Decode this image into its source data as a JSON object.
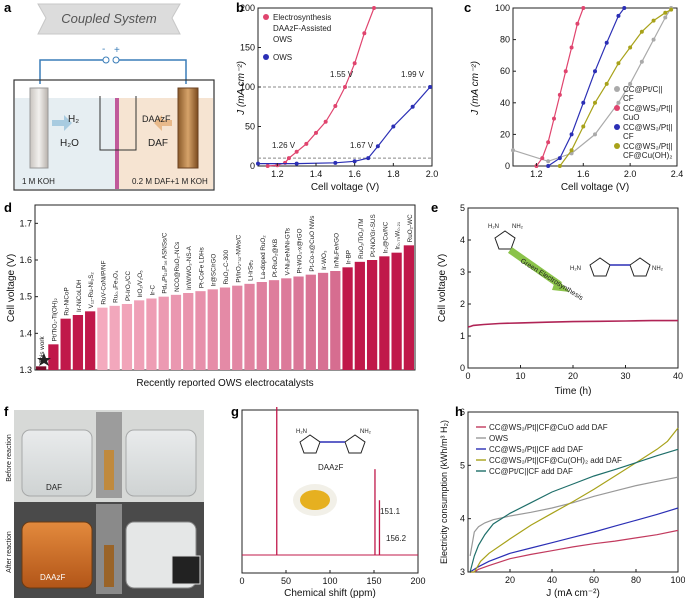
{
  "panels": {
    "a": {
      "label": "a",
      "title": "Coupled System",
      "minus": "-",
      "plus": "+",
      "h2": "H₂",
      "h2o": "H₂O",
      "daazf": "DAAzF",
      "daf": "DAF",
      "left_electrolyte": "1 M KOH",
      "right_electrolyte": "0.2 M DAF+1 M KOH"
    },
    "b": {
      "label": "b"
    },
    "c": {
      "label": "c"
    },
    "d": {
      "label": "d"
    },
    "e": {
      "label": "e",
      "scheme_arrow": "Green Electrosynthesis"
    },
    "f": {
      "label": "f",
      "before": "Before reaction",
      "after": "After reaction",
      "daf_tag": "DAF",
      "daazf_tag": "DAAzF"
    },
    "g": {
      "label": "g",
      "molecule": "DAAzF"
    },
    "h": {
      "label": "h"
    }
  },
  "chart_data": [
    {
      "id": "b",
      "type": "line",
      "xlabel": "Cell voltage (V)",
      "ylabel": "J (mA cm⁻²)",
      "xlim": [
        1.1,
        2.0
      ],
      "ylim": [
        0,
        200
      ],
      "xticks": [
        "1.2",
        "1.4",
        "1.6",
        "1.8",
        "2.0"
      ],
      "yticks": [
        "0",
        "50",
        "100",
        "150",
        "200"
      ],
      "hlines": [
        100,
        10
      ],
      "series": [
        {
          "name": "Electrosynthesis",
          "color": "#e0446e",
          "x": [
            1.15,
            1.2,
            1.24,
            1.26,
            1.3,
            1.35,
            1.4,
            1.45,
            1.5,
            1.55,
            1.6,
            1.65,
            1.7
          ],
          "y": [
            0,
            1,
            4,
            10,
            18,
            28,
            42,
            56,
            76,
            100,
            130,
            168,
            200
          ]
        },
        {
          "name": "OWS",
          "color": "#2b2fb5",
          "x": [
            1.1,
            1.3,
            1.5,
            1.6,
            1.67,
            1.72,
            1.8,
            1.9,
            1.99
          ],
          "y": [
            3,
            3,
            4,
            6,
            10,
            25,
            50,
            75,
            100
          ]
        }
      ],
      "legend": [
        "Electrosynthesis",
        "DAAzF-Assisted",
        "OWS",
        "OWS"
      ],
      "annotations": [
        "1.55 V",
        "1.99 V",
        "1.26 V",
        "1.67 V"
      ]
    },
    {
      "id": "c",
      "type": "line",
      "xlabel": "Cell voltage (V)",
      "ylabel": "J (mA cm⁻²)",
      "xlim": [
        1.0,
        2.4
      ],
      "ylim": [
        0,
        100
      ],
      "xticks": [
        "1.2",
        "1.6",
        "2.0",
        "2.4"
      ],
      "yticks": [
        "0",
        "20",
        "40",
        "60",
        "80",
        "100"
      ],
      "series": [
        {
          "name": "CC@Pt/C||CF",
          "color": "#aaaaaa",
          "x": [
            1.0,
            1.3,
            1.5,
            1.7,
            1.9,
            2.0,
            2.1,
            2.2,
            2.3,
            2.35
          ],
          "y": [
            10,
            3,
            8,
            20,
            40,
            52,
            66,
            80,
            94,
            100
          ]
        },
        {
          "name": "CC@WS₂/Pt||CuO",
          "color": "#e0446e",
          "x": [
            1.2,
            1.25,
            1.3,
            1.35,
            1.4,
            1.45,
            1.5,
            1.55,
            1.6
          ],
          "y": [
            0,
            5,
            15,
            30,
            45,
            60,
            75,
            90,
            100
          ]
        },
        {
          "name": "CC@WS₂/Pt||CF",
          "color": "#2b2fb5",
          "x": [
            1.3,
            1.4,
            1.5,
            1.6,
            1.7,
            1.8,
            1.9,
            1.95
          ],
          "y": [
            0,
            5,
            20,
            40,
            60,
            78,
            95,
            100
          ]
        },
        {
          "name": "CC@WS₂/Pt||CF@Cu(OH)₂",
          "color": "#a8a21a",
          "x": [
            1.4,
            1.5,
            1.6,
            1.7,
            1.8,
            1.9,
            2.0,
            2.1,
            2.2,
            2.3,
            2.35
          ],
          "y": [
            0,
            10,
            25,
            40,
            52,
            65,
            75,
            85,
            92,
            97,
            99
          ]
        }
      ],
      "legend": [
        "CC@Pt/C||",
        "CF",
        "CC@WS₂/Pt||",
        "CuO",
        "CC@WS₂/Pt||",
        "CF",
        "CC@WS₂/Pt||",
        "CF@Cu(OH)₂"
      ]
    },
    {
      "id": "d",
      "type": "bar",
      "xlabel": "Recently reported OWS electrocatalysts",
      "ylabel": "Cell voltage (V)",
      "ylim": [
        1.3,
        1.75
      ],
      "yticks": [
        "1.3",
        "1.4",
        "1.5",
        "1.6",
        "1.7"
      ],
      "categories": [
        "This work",
        "Pt/TiO₂-Ti(OH)₂",
        "Ru-NiCoP",
        "Ir-NiCoLDH",
        "V₁₂-Ru-Ni₃S₂",
        "RuV-CoNi/P/NF",
        "Ru₀.₃Fe₃O₄",
        "Pt-IrO₂/CC",
        "IrO₂/V₂O₅",
        "Ir-C",
        "Pd₄₄Pt₂₀P₃₆ ASNSs/C",
        "NCO@RuO₂-NCs",
        "Ir/W/WO₃-NS-A",
        "Pt-CoFe LDHs",
        "Ir@SC/rGO",
        "RuO₂-C-300",
        "Pt/IrO₂-₃₂-NWs/C",
        "Li-IrSe₂",
        "La-doped RuO₂",
        "Pt-RuO₂@KB",
        "V-Ni₃FeN/Ni-GTs",
        "Pt-WO₃-x@rGO",
        "Pt-Co-x@CuO NWs",
        "Ir-WO₃",
        "Ir/Ni₂Fe/rGO",
        "Ir-BP",
        "RuO₂/TiO₂/TM",
        "Pt-NiO/Gr-SUS",
        "Ir₂@Co/NC",
        "Ir₀.₇₉W₀.₂₁",
        "RuO₂-WC"
      ],
      "values": [
        1.31,
        1.37,
        1.44,
        1.45,
        1.46,
        1.47,
        1.475,
        1.48,
        1.49,
        1.495,
        1.5,
        1.505,
        1.51,
        1.515,
        1.52,
        1.525,
        1.53,
        1.535,
        1.54,
        1.545,
        1.55,
        1.555,
        1.56,
        1.565,
        1.57,
        1.58,
        1.595,
        1.6,
        1.61,
        1.62,
        1.64
      ]
    },
    {
      "id": "e",
      "type": "line",
      "xlabel": "Time (h)",
      "ylabel": "Cell voltage (V)",
      "xlim": [
        0,
        40
      ],
      "ylim": [
        0,
        5
      ],
      "xticks": [
        "0",
        "10",
        "20",
        "30",
        "40"
      ],
      "yticks": [
        "0",
        "1",
        "2",
        "3",
        "4",
        "5"
      ],
      "series": [
        {
          "name": "stability",
          "color": "#b02456",
          "x": [
            0,
            0.5,
            1,
            3,
            6,
            10,
            15,
            20,
            25,
            30,
            35,
            40
          ],
          "y": [
            1.28,
            1.3,
            1.33,
            1.36,
            1.39,
            1.41,
            1.43,
            1.45,
            1.46,
            1.47,
            1.48,
            1.48
          ]
        }
      ]
    },
    {
      "id": "g",
      "type": "line",
      "xlabel": "Chemical shift (ppm)",
      "xlim": [
        0,
        200
      ],
      "xticks": [
        "0",
        "50",
        "100",
        "150",
        "200"
      ],
      "peaks": [
        {
          "x": 39.5,
          "h": 1.0
        },
        {
          "x": 151.1,
          "h": 0.58
        },
        {
          "x": 156.2,
          "h": 0.37
        }
      ],
      "annotations": [
        "151.1",
        "156.2"
      ]
    },
    {
      "id": "h",
      "type": "line",
      "xlabel": "J (mA cm⁻²)",
      "ylabel": "Electricity consumption (kWh/m³ H₂)",
      "xlim": [
        0,
        100
      ],
      "ylim": [
        3,
        6
      ],
      "xticks": [
        "20",
        "40",
        "60",
        "80",
        "100"
      ],
      "yticks": [
        "3",
        "4",
        "5",
        "6"
      ],
      "series": [
        {
          "name": "CC@WS₂/Pt||CF@CuO add DAF",
          "color": "#c23a5e",
          "x": [
            1,
            3,
            5,
            10,
            20,
            30,
            40,
            50,
            60,
            70,
            80,
            90,
            100
          ],
          "y": [
            2.95,
            3.0,
            3.05,
            3.12,
            3.25,
            3.33,
            3.4,
            3.47,
            3.53,
            3.58,
            3.64,
            3.7,
            3.78
          ]
        },
        {
          "name": "OWS",
          "color": "#999999",
          "x": [
            1,
            3,
            5,
            8,
            12,
            20,
            30,
            40,
            50,
            60,
            70,
            80,
            90,
            100
          ],
          "y": [
            3.3,
            3.75,
            3.85,
            3.92,
            3.98,
            4.05,
            4.12,
            4.2,
            4.3,
            4.42,
            4.52,
            4.62,
            4.7,
            4.78
          ]
        },
        {
          "name": "CC@WS₂/Pt||CF add DAF",
          "color": "#2b2fb5",
          "x": [
            1,
            3,
            5,
            10,
            20,
            30,
            40,
            50,
            60,
            70,
            80,
            90,
            100
          ],
          "y": [
            2.95,
            3.05,
            3.1,
            3.2,
            3.35,
            3.45,
            3.55,
            3.65,
            3.75,
            3.86,
            3.97,
            4.08,
            4.2
          ]
        },
        {
          "name": "CC@WS₂/Pt||CF@Cu(OH)₂ add DAF",
          "color": "#a8a21a",
          "x": [
            1,
            3,
            6,
            10,
            20,
            30,
            40,
            50,
            60,
            70,
            80,
            90,
            95,
            100
          ],
          "y": [
            2.85,
            3.0,
            3.2,
            3.35,
            3.62,
            3.88,
            4.1,
            4.32,
            4.55,
            4.8,
            5.05,
            5.3,
            5.45,
            5.7
          ]
        },
        {
          "name": "CC@Pt/C||CF add DAF",
          "color": "#1f6f6a",
          "x": [
            1,
            3,
            5,
            8,
            12,
            20,
            30,
            40,
            50,
            60,
            70,
            80,
            90,
            100
          ],
          "y": [
            2.9,
            3.3,
            3.5,
            3.7,
            3.9,
            4.1,
            4.3,
            4.5,
            4.65,
            4.8,
            4.92,
            5.05,
            5.18,
            5.3
          ]
        }
      ],
      "legend": [
        "CC@WS₂/Pt||CF@CuO add DAF",
        "OWS",
        "CC@WS₂/Pt||CF add DAF",
        "CC@WS₂/Pt||CF@Cu(OH)₂ add DAF",
        "CC@Pt/C||CF add DAF"
      ]
    }
  ]
}
